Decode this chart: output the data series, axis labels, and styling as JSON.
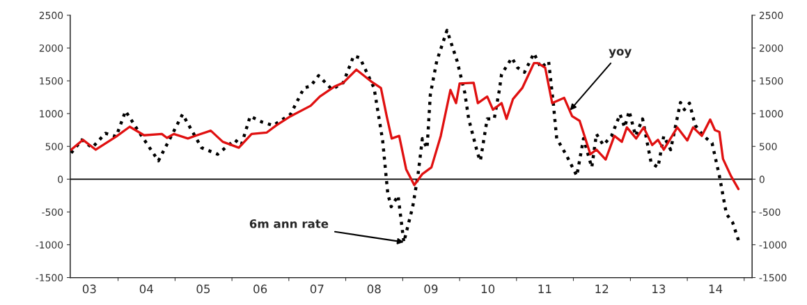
{
  "chart_data": {
    "type": "line",
    "xlim": [
      "2003-02-28",
      "2015-02-21"
    ],
    "xticks": [
      {
        "value": "2004-01-01",
        "label": null
      },
      {
        "value": "2005-01-01",
        "label": null
      },
      {
        "value": "2006-01-01",
        "label": null
      },
      {
        "value": "2007-01-01",
        "label": null
      },
      {
        "value": "2008-01-01",
        "label": null
      },
      {
        "value": "2009-01-01",
        "label": null
      },
      {
        "value": "2010-01-01",
        "label": null
      },
      {
        "value": "2011-01-01",
        "label": null
      },
      {
        "value": "2012-01-01",
        "label": null
      },
      {
        "value": "2013-01-01",
        "label": null
      },
      {
        "value": "2014-01-01",
        "label": null
      },
      {
        "value": "2015-01-01",
        "label": null
      },
      {
        "value": "2003-07-01",
        "label": "03"
      },
      {
        "value": "2004-07-01",
        "label": "04"
      },
      {
        "value": "2005-07-01",
        "label": "05"
      },
      {
        "value": "2006-07-01",
        "label": "06"
      },
      {
        "value": "2007-07-01",
        "label": "07"
      },
      {
        "value": "2008-07-01",
        "label": "08"
      },
      {
        "value": "2009-07-01",
        "label": "09"
      },
      {
        "value": "2010-07-01",
        "label": "10"
      },
      {
        "value": "2011-07-01",
        "label": "11"
      },
      {
        "value": "2012-07-01",
        "label": "12"
      },
      {
        "value": "2013-07-01",
        "label": "13"
      },
      {
        "value": "2014-07-01",
        "label": "14"
      }
    ],
    "ylim": [
      -1500,
      2500
    ],
    "yticks": [
      -1500,
      -1000,
      -500,
      0,
      500,
      1000,
      1500,
      2000,
      2500
    ],
    "y2lim": [
      -1500,
      2500
    ],
    "y2ticks": [
      -1500,
      -1000,
      -500,
      0,
      500,
      1000,
      1500,
      2000,
      2500
    ],
    "grid": false,
    "legend": false,
    "ref_lines": [
      {
        "axis": "y",
        "value": 0,
        "color": "#000000"
      }
    ],
    "annotations": [
      {
        "text": "yoy",
        "x": "2011-12-10",
        "y": 1050
      },
      {
        "text": "6m ann rate",
        "x": "2009-01-08",
        "y": -960
      }
    ],
    "series": [
      {
        "color": "#000000",
        "line_style": "dotted",
        "x": [
          "2003-03-06",
          "2003-05-14",
          "2003-07-19",
          "2003-10-12",
          "2003-12-20",
          "2004-02-18",
          "2004-05-14",
          "2004-09-16",
          "2005-02-18",
          "2005-06-20",
          "2005-10-01",
          "2006-01-19",
          "2006-03-02",
          "2006-04-28",
          "2006-07-15",
          "2006-09-23",
          "2007-01-12",
          "2007-04-08",
          "2007-05-21",
          "2007-07-11",
          "2007-10-04",
          "2007-12-16",
          "2008-02-21",
          "2008-04-01",
          "2008-07-01",
          "2008-08-25",
          "2008-09-27",
          "2008-10-19",
          "2008-12-02",
          "2009-01-08",
          "2009-03-06",
          "2009-04-08",
          "2009-05-07",
          "2009-06-06",
          "2009-06-27",
          "2009-08-07",
          "2009-10-12",
          "2009-12-16",
          "2010-02-03",
          "2010-02-28",
          "2010-04-28",
          "2010-05-14",
          "2010-06-27",
          "2010-08-11",
          "2010-09-13",
          "2010-09-27",
          "2010-12-02",
          "2011-01-08",
          "2011-02-21",
          "2011-04-23",
          "2011-06-06",
          "2011-07-26",
          "2011-08-25",
          "2011-09-16",
          "2011-11-14",
          "2012-01-23",
          "2012-03-06",
          "2012-04-28",
          "2012-05-28",
          "2012-07-11",
          "2012-09-02",
          "2012-10-26",
          "2012-11-25",
          "2012-12-24",
          "2013-02-03",
          "2013-03-20",
          "2013-05-14",
          "2013-06-27",
          "2013-08-03",
          "2013-09-16",
          "2013-11-18",
          "2013-12-13",
          "2014-01-15",
          "2014-02-21",
          "2014-04-15",
          "2014-06-09",
          "2014-07-26",
          "2014-09-09",
          "2014-10-19",
          "2014-11-25"
        ],
        "values": [
          400,
          600,
          480,
          700,
          650,
          1040,
          720,
          280,
          990,
          480,
          380,
          600,
          520,
          960,
          870,
          820,
          990,
          1390,
          1420,
          1580,
          1370,
          1470,
          1880,
          1850,
          1390,
          590,
          -220,
          -420,
          -250,
          -960,
          -420,
          50,
          620,
          470,
          1290,
          1800,
          2270,
          1800,
          1320,
          920,
          380,
          280,
          920,
          920,
          1360,
          1600,
          1850,
          1700,
          1630,
          1920,
          1700,
          1800,
          1160,
          620,
          380,
          50,
          620,
          180,
          690,
          520,
          660,
          990,
          790,
          1040,
          660,
          920,
          250,
          180,
          660,
          450,
          1170,
          1060,
          1160,
          820,
          660,
          550,
          50,
          -530,
          -660,
          -930
        ]
      },
      {
        "color": "#e01010",
        "line_style": "solid",
        "x": [
          "2003-03-06",
          "2003-05-21",
          "2003-08-11",
          "2003-12-20",
          "2004-03-16",
          "2004-06-16",
          "2004-10-08",
          "2004-11-10",
          "2004-12-24",
          "2005-03-24",
          "2005-05-21",
          "2005-08-18",
          "2005-11-03",
          "2006-02-14",
          "2006-05-07",
          "2006-08-11",
          "2006-10-12",
          "2007-01-12",
          "2007-05-21",
          "2007-07-19",
          "2007-10-19",
          "2007-12-16",
          "2008-03-09",
          "2008-06-13",
          "2008-08-14",
          "2008-09-20",
          "2008-10-22",
          "2008-12-09",
          "2009-01-23",
          "2009-03-16",
          "2009-05-07",
          "2009-07-04",
          "2009-09-02",
          "2009-11-03",
          "2009-12-09",
          "2010-01-01",
          "2010-04-01",
          "2010-04-28",
          "2010-06-27",
          "2010-08-03",
          "2010-09-27",
          "2010-10-29",
          "2010-12-09",
          "2011-02-07",
          "2011-04-23",
          "2011-05-18",
          "2011-07-04",
          "2011-08-18",
          "2011-11-03",
          "2011-12-24",
          "2012-02-10",
          "2012-04-19",
          "2012-05-28",
          "2012-07-26",
          "2012-09-20",
          "2012-11-07",
          "2012-12-09",
          "2013-02-07",
          "2013-03-27",
          "2013-05-21",
          "2013-06-27",
          "2013-08-03",
          "2013-10-29",
          "2014-01-01",
          "2014-02-07",
          "2014-04-04",
          "2014-05-28",
          "2014-06-27",
          "2014-07-26",
          "2014-08-18",
          "2014-10-08",
          "2014-11-25"
        ],
        "values": [
          450,
          600,
          450,
          650,
          800,
          670,
          690,
          630,
          690,
          620,
          670,
          740,
          570,
          480,
          690,
          710,
          820,
          960,
          1120,
          1260,
          1410,
          1470,
          1670,
          1490,
          1390,
          960,
          620,
          660,
          150,
          -90,
          80,
          180,
          660,
          1360,
          1160,
          1460,
          1470,
          1160,
          1260,
          1060,
          1160,
          920,
          1220,
          1390,
          1770,
          1770,
          1700,
          1160,
          1240,
          960,
          890,
          380,
          450,
          300,
          660,
          570,
          790,
          620,
          790,
          520,
          600,
          450,
          790,
          590,
          790,
          660,
          910,
          750,
          720,
          310,
          50,
          -150
        ]
      }
    ]
  }
}
